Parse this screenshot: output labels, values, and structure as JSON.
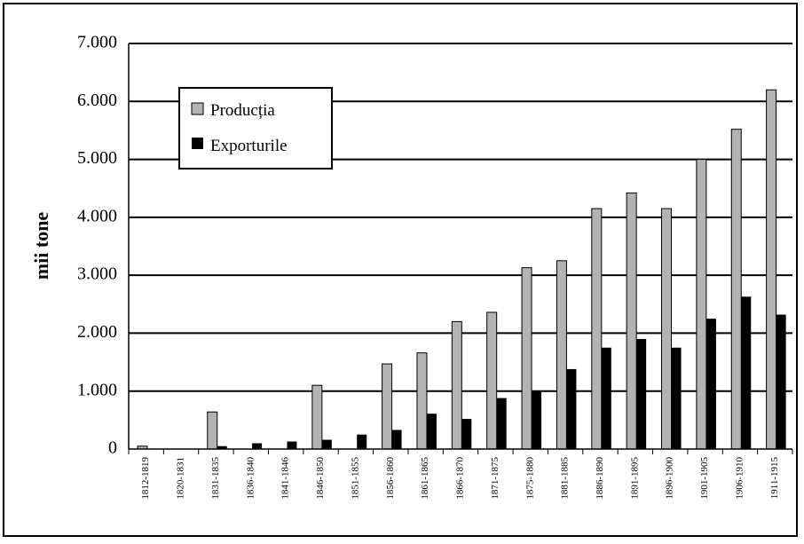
{
  "chart_data": {
    "type": "bar",
    "ylabel": "mii tone",
    "xlabel": "",
    "ylim": [
      0,
      7000
    ],
    "yticks": [
      "0",
      "1.000",
      "2.000",
      "3.000",
      "4.000",
      "5.000",
      "6.000",
      "7.000"
    ],
    "ytick_values": [
      0,
      1000,
      2000,
      3000,
      4000,
      5000,
      6000,
      7000
    ],
    "grid": true,
    "legend_position": "top-left",
    "categories": [
      "1812-1819",
      "1820-1831",
      "1831-1835",
      "1836-1840",
      "1841-1846",
      "1846-1850",
      "1851-1855",
      "1856-1860",
      "1861-1865",
      "1866-1870",
      "1871-1875",
      "1875-1880",
      "1881-1885",
      "1886-1890",
      "1891-1895",
      "1896-1900",
      "1901-1905",
      "1906-1910",
      "1911-1915"
    ],
    "series": [
      {
        "name": "Producția",
        "color": "#b3b3b3",
        "values": [
          50,
          0,
          640,
          0,
          0,
          1100,
          0,
          1470,
          1660,
          2200,
          2360,
          3130,
          3250,
          4150,
          4420,
          4150,
          5000,
          5520,
          6200
        ]
      },
      {
        "name": "Exporturile",
        "color": "#000000",
        "values": [
          0,
          0,
          50,
          100,
          130,
          160,
          250,
          330,
          610,
          520,
          880,
          990,
          1380,
          1750,
          1900,
          1750,
          2250,
          2630,
          2320
        ]
      }
    ]
  }
}
